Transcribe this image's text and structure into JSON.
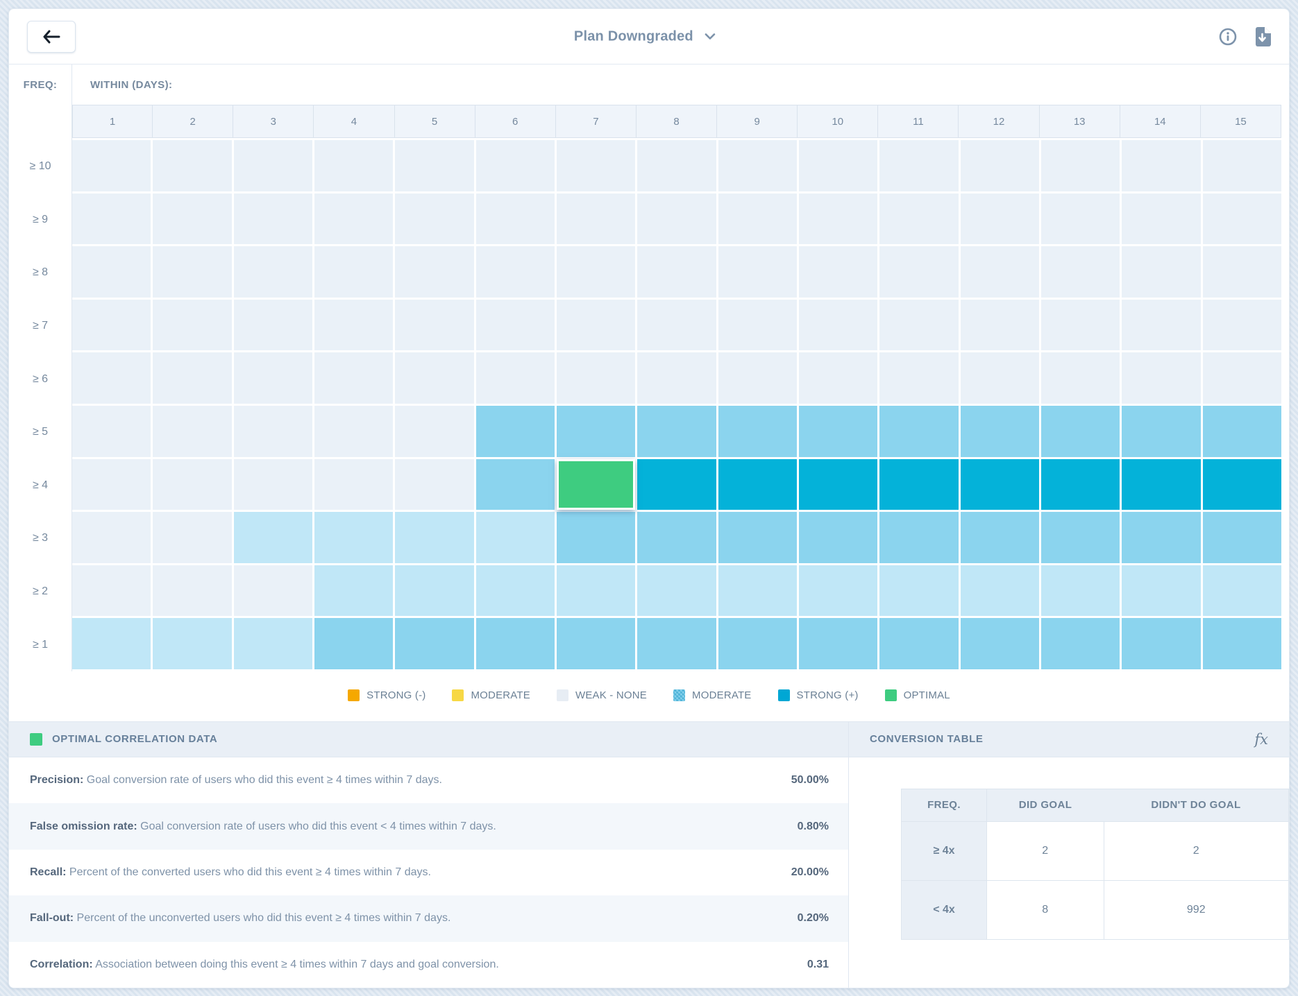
{
  "header": {
    "title": "Plan Downgraded",
    "back_icon": "arrow-left-icon",
    "title_chevron_icon": "chevron-down-icon",
    "info_icon": "info-icon",
    "export_icon": "file-download-icon"
  },
  "heatmap": {
    "freq_label": "FREQ:",
    "within_label": "WITHIN (DAYS):",
    "columns": [
      "1",
      "2",
      "3",
      "4",
      "5",
      "6",
      "7",
      "8",
      "9",
      "10",
      "11",
      "12",
      "13",
      "14",
      "15"
    ],
    "levels": {
      "w": {
        "name": "weak-none",
        "color": "#eaf1f8"
      },
      "l": {
        "name": "weak-moderate",
        "color": "#c0e7f7"
      },
      "m": {
        "name": "moderate",
        "color": "#8bd4ee"
      },
      "s": {
        "name": "strong-positive",
        "color": "#04b2d9"
      },
      "o": {
        "name": "optimal",
        "color": "#3ecc80"
      }
    },
    "rows": [
      {
        "label": "≥ 10",
        "cells": [
          "w",
          "w",
          "w",
          "w",
          "w",
          "w",
          "w",
          "w",
          "w",
          "w",
          "w",
          "w",
          "w",
          "w",
          "w"
        ]
      },
      {
        "label": "≥ 9",
        "cells": [
          "w",
          "w",
          "w",
          "w",
          "w",
          "w",
          "w",
          "w",
          "w",
          "w",
          "w",
          "w",
          "w",
          "w",
          "w"
        ]
      },
      {
        "label": "≥ 8",
        "cells": [
          "w",
          "w",
          "w",
          "w",
          "w",
          "w",
          "w",
          "w",
          "w",
          "w",
          "w",
          "w",
          "w",
          "w",
          "w"
        ]
      },
      {
        "label": "≥ 7",
        "cells": [
          "w",
          "w",
          "w",
          "w",
          "w",
          "w",
          "w",
          "w",
          "w",
          "w",
          "w",
          "w",
          "w",
          "w",
          "w"
        ]
      },
      {
        "label": "≥ 6",
        "cells": [
          "w",
          "w",
          "w",
          "w",
          "w",
          "w",
          "w",
          "w",
          "w",
          "w",
          "w",
          "w",
          "w",
          "w",
          "w"
        ]
      },
      {
        "label": "≥ 5",
        "cells": [
          "w",
          "w",
          "w",
          "w",
          "w",
          "m",
          "m",
          "m",
          "m",
          "m",
          "m",
          "m",
          "m",
          "m",
          "m"
        ]
      },
      {
        "label": "≥ 4",
        "cells": [
          "w",
          "w",
          "w",
          "w",
          "w",
          "m",
          "o",
          "s",
          "s",
          "s",
          "s",
          "s",
          "s",
          "s",
          "s"
        ]
      },
      {
        "label": "≥ 3",
        "cells": [
          "w",
          "w",
          "l",
          "l",
          "l",
          "l",
          "m",
          "m",
          "m",
          "m",
          "m",
          "m",
          "m",
          "m",
          "m"
        ]
      },
      {
        "label": "≥ 2",
        "cells": [
          "w",
          "w",
          "w",
          "l",
          "l",
          "l",
          "l",
          "l",
          "l",
          "l",
          "l",
          "l",
          "l",
          "l",
          "l"
        ]
      },
      {
        "label": "≥ 1",
        "cells": [
          "l",
          "l",
          "l",
          "m",
          "m",
          "m",
          "m",
          "m",
          "m",
          "m",
          "m",
          "m",
          "m",
          "m",
          "m"
        ]
      }
    ]
  },
  "legend": [
    {
      "label": "STRONG (-)",
      "color": "#f5a800",
      "pattern": false
    },
    {
      "label": "MODERATE",
      "color": "#f7d845",
      "pattern": false
    },
    {
      "label": "WEAK - NONE",
      "color": "#e7edf4",
      "pattern": false
    },
    {
      "label": "MODERATE",
      "color": "#8bd4ee",
      "pattern": true
    },
    {
      "label": "STRONG (+)",
      "color": "#00a7d4",
      "pattern": false
    },
    {
      "label": "OPTIMAL",
      "color": "#3ecc80",
      "pattern": false
    }
  ],
  "optimal_panel": {
    "title": "OPTIMAL CORRELATION DATA",
    "swatch_color": "#3ecc80",
    "rows": [
      {
        "label": "Precision:",
        "description": "Goal conversion rate of users who did this event ≥ 4 times within 7 days.",
        "value": "50.00%"
      },
      {
        "label": "False omission rate:",
        "description": "Goal conversion rate of users who did this event < 4 times within 7 days.",
        "value": "0.80%"
      },
      {
        "label": "Recall:",
        "description": "Percent of the converted users who did this event ≥ 4 times within 7 days.",
        "value": "20.00%"
      },
      {
        "label": "Fall-out:",
        "description": "Percent of the unconverted users who did this event ≥ 4 times within 7 days.",
        "value": "0.20%"
      },
      {
        "label": "Correlation:",
        "description": "Association between doing this event ≥ 4 times within 7 days and goal conversion.",
        "value": "0.31"
      }
    ]
  },
  "conversion_panel": {
    "title": "CONVERSION TABLE",
    "fx_icon": "fx",
    "table": {
      "headers": [
        "FREQ.",
        "DID GOAL",
        "DIDN'T DO GOAL"
      ],
      "rows": [
        {
          "freq": "≥ 4x",
          "did": "2",
          "didnt": "2"
        },
        {
          "freq": "< 4x",
          "did": "8",
          "didnt": "992"
        }
      ]
    }
  },
  "chart_data": {
    "type": "heatmap",
    "title": "Plan Downgraded",
    "xlabel": "WITHIN (DAYS):",
    "ylabel": "FREQ:",
    "x": [
      1,
      2,
      3,
      4,
      5,
      6,
      7,
      8,
      9,
      10,
      11,
      12,
      13,
      14,
      15
    ],
    "y": [
      "≥ 10",
      "≥ 9",
      "≥ 8",
      "≥ 7",
      "≥ 6",
      "≥ 5",
      "≥ 4",
      "≥ 3",
      "≥ 2",
      "≥ 1"
    ],
    "values": [
      [
        "w",
        "w",
        "w",
        "w",
        "w",
        "w",
        "w",
        "w",
        "w",
        "w",
        "w",
        "w",
        "w",
        "w",
        "w"
      ],
      [
        "w",
        "w",
        "w",
        "w",
        "w",
        "w",
        "w",
        "w",
        "w",
        "w",
        "w",
        "w",
        "w",
        "w",
        "w"
      ],
      [
        "w",
        "w",
        "w",
        "w",
        "w",
        "w",
        "w",
        "w",
        "w",
        "w",
        "w",
        "w",
        "w",
        "w",
        "w"
      ],
      [
        "w",
        "w",
        "w",
        "w",
        "w",
        "w",
        "w",
        "w",
        "w",
        "w",
        "w",
        "w",
        "w",
        "w",
        "w"
      ],
      [
        "w",
        "w",
        "w",
        "w",
        "w",
        "w",
        "w",
        "w",
        "w",
        "w",
        "w",
        "w",
        "w",
        "w",
        "w"
      ],
      [
        "w",
        "w",
        "w",
        "w",
        "w",
        "m",
        "m",
        "m",
        "m",
        "m",
        "m",
        "m",
        "m",
        "m",
        "m"
      ],
      [
        "w",
        "w",
        "w",
        "w",
        "w",
        "m",
        "o",
        "s",
        "s",
        "s",
        "s",
        "s",
        "s",
        "s",
        "s"
      ],
      [
        "w",
        "w",
        "l",
        "l",
        "l",
        "l",
        "m",
        "m",
        "m",
        "m",
        "m",
        "m",
        "m",
        "m",
        "m"
      ],
      [
        "w",
        "w",
        "w",
        "l",
        "l",
        "l",
        "l",
        "l",
        "l",
        "l",
        "l",
        "l",
        "l",
        "l",
        "l"
      ],
      [
        "l",
        "l",
        "l",
        "m",
        "m",
        "m",
        "m",
        "m",
        "m",
        "m",
        "m",
        "m",
        "m",
        "m",
        "m"
      ]
    ],
    "value_legend": {
      "w": "weak-none",
      "l": "weak-moderate",
      "m": "moderate",
      "s": "strong-positive",
      "o": "optimal"
    },
    "selected_cell": {
      "freq": "≥ 4",
      "day": 7,
      "level": "optimal"
    },
    "legend_position": "bottom-center"
  }
}
